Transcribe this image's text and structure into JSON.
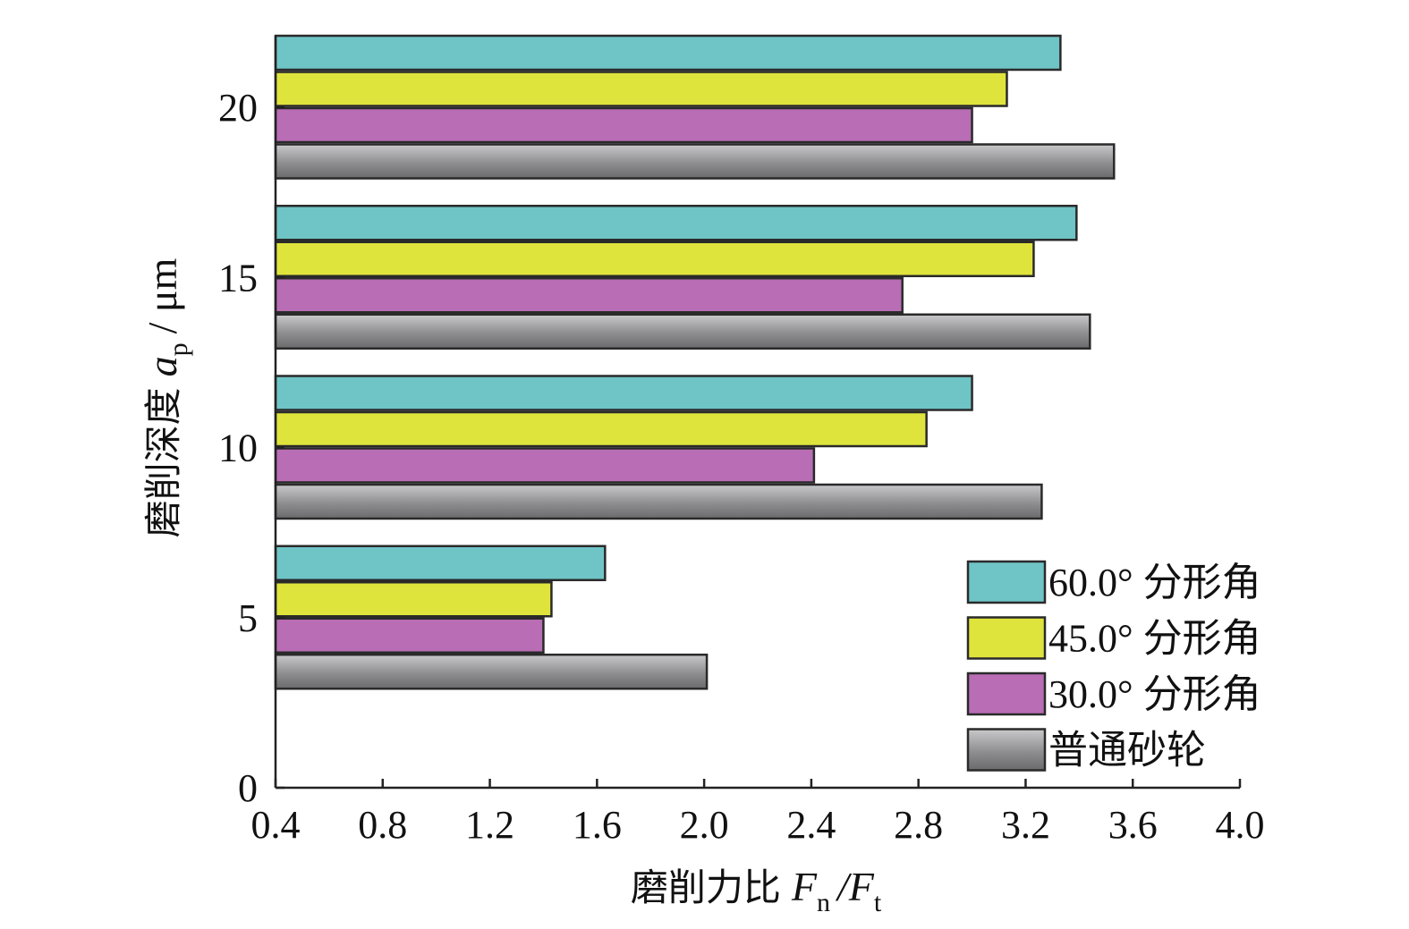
{
  "chart_data": {
    "type": "bar",
    "orientation": "horizontal",
    "categories": [
      "5",
      "10",
      "15",
      "20"
    ],
    "series": [
      {
        "name": "60.0° 分形角",
        "values": [
          1.63,
          3.0,
          3.39,
          3.33
        ],
        "color": "#6fc4c6"
      },
      {
        "name": "45.0° 分形角",
        "values": [
          1.43,
          2.83,
          3.23,
          3.13
        ],
        "color": "#dfe43c"
      },
      {
        "name": "30.0° 分形角",
        "values": [
          1.4,
          2.41,
          2.74,
          3.0
        ],
        "color": "#b86db5"
      },
      {
        "name": "普通砂轮",
        "values": [
          2.01,
          3.26,
          3.44,
          3.53
        ],
        "color": "#8d8d8f"
      }
    ],
    "xlim": [
      0.4,
      4.0
    ],
    "xticks": [
      "0.4",
      "0.8",
      "1.2",
      "1.6",
      "2.0",
      "2.4",
      "2.8",
      "3.2",
      "3.6",
      "4.0"
    ],
    "yticks": [
      "0",
      "5",
      "10",
      "15",
      "20"
    ],
    "xlabel": {
      "text": "磨削力比",
      "var1": "F",
      "sub1": "n",
      "sep": "/",
      "var2": "F",
      "sub2": "t"
    },
    "ylabel": {
      "text": "磨削深度",
      "var": "a",
      "sub": "p",
      "unit": "/ μm"
    },
    "legend": {
      "position": "bottom-right"
    },
    "grid": false
  }
}
